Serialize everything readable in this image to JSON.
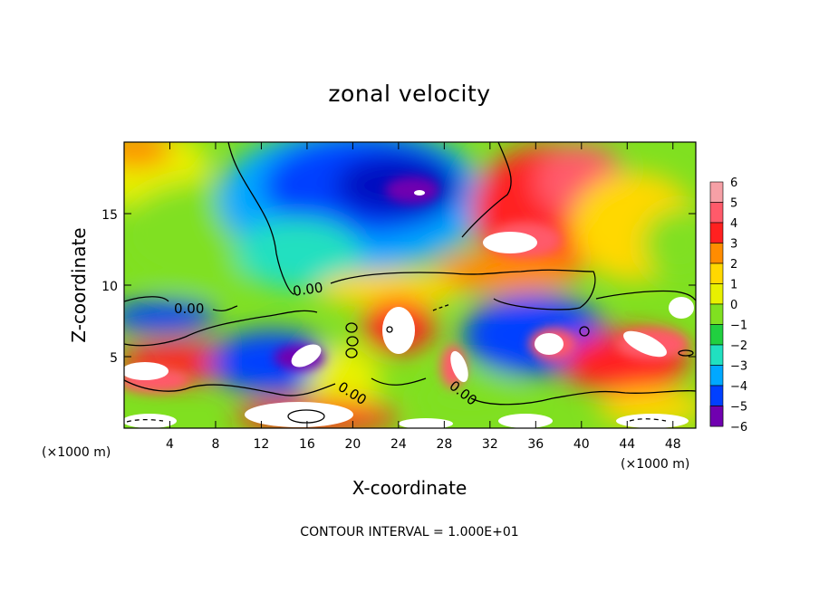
{
  "chart_data": {
    "type": "heatmap",
    "title": "zonal velocity",
    "xlabel": "X-coordinate",
    "ylabel": "Z-coordinate",
    "x_unit_left": "(×1000 m)",
    "x_unit_right": "(×1000 m)",
    "xlim": [
      0,
      50
    ],
    "ylim": [
      0,
      20
    ],
    "xticks": [
      "4",
      "8",
      "12",
      "16",
      "20",
      "24",
      "28",
      "32",
      "36",
      "40",
      "44",
      "48"
    ],
    "xtick_values": [
      4,
      8,
      12,
      16,
      20,
      24,
      28,
      32,
      36,
      40,
      44,
      48
    ],
    "yticks": [
      "5",
      "10",
      "15"
    ],
    "ytick_values": [
      5,
      10,
      15
    ],
    "colorbar": {
      "labels": [
        "6",
        "5",
        "4",
        "3",
        "2",
        "1",
        "0",
        "−1",
        "−2",
        "−3",
        "−4",
        "−5",
        "−6"
      ],
      "values": [
        6,
        5,
        4,
        3,
        2,
        1,
        0,
        -1,
        -2,
        -3,
        -4,
        -5,
        -6
      ],
      "colors": [
        "#f6a0a6",
        "#ff5a6a",
        "#ff2020",
        "#ff8c00",
        "#ffd800",
        "#e8f000",
        "#80e020",
        "#20d040",
        "#20e0c0",
        "#00a8ff",
        "#0040ff",
        "#0010c0",
        "#7000b0"
      ],
      "over_color": "#ffffff"
    },
    "contour_labels": [
      "0.00",
      "0.00",
      "0.00",
      "0.00"
    ],
    "contour_interval_text": "CONTOUR INTERVAL = 1.000E+01",
    "grid": false
  }
}
